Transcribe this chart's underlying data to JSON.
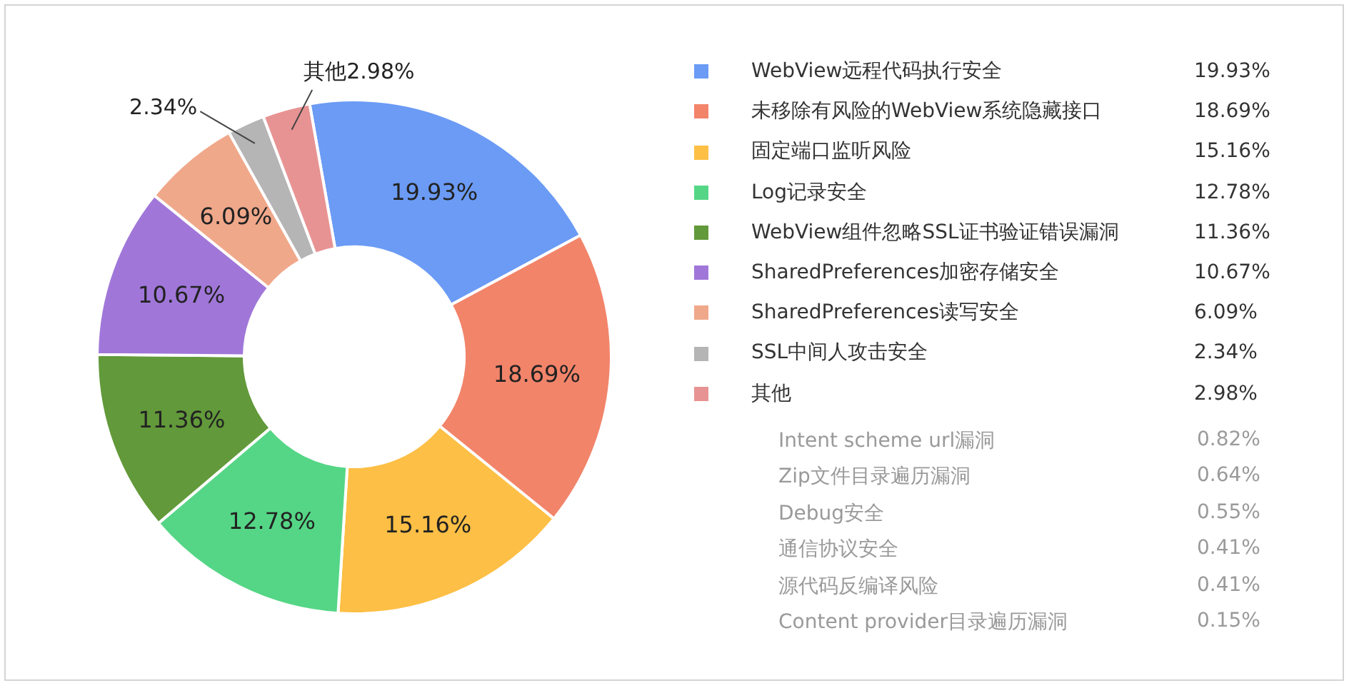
{
  "chart_data": {
    "type": "donut",
    "categories": [
      "WebView远程代码执行安全",
      "未移除有风险的WebView系统隐藏接口",
      "固定端口监听风险",
      "Log记录安全",
      "WebView组件忽略SSL证书验证错误漏洞",
      "SharedPreferences加密存储安全",
      "SharedPreferences读写安全",
      "SSL中间人攻击安全",
      "其他"
    ],
    "values": [
      19.93,
      18.69,
      15.16,
      12.78,
      11.36,
      10.67,
      6.09,
      2.34,
      2.98
    ],
    "value_labels": [
      "19.93%",
      "18.69%",
      "15.16%",
      "12.78%",
      "11.36%",
      "10.67%",
      "6.09%",
      "2.34%",
      "2.98%"
    ],
    "colors": [
      "#6b9bf5",
      "#f2846a",
      "#fdbf45",
      "#55d686",
      "#62993a",
      "#a077d9",
      "#f0a88a",
      "#b5b5b5",
      "#e89393"
    ],
    "legend": "right",
    "annotations": [
      "Intent scheme url漏洞 0.82%",
      "Zip文件目录遍历漏洞 0.64%",
      "Debug安全 0.55%",
      "通信协议安全 0.41%",
      "源代码反编译风险 0.41%",
      "Content provider目录遍历漏洞 0.15%"
    ]
  }
}
